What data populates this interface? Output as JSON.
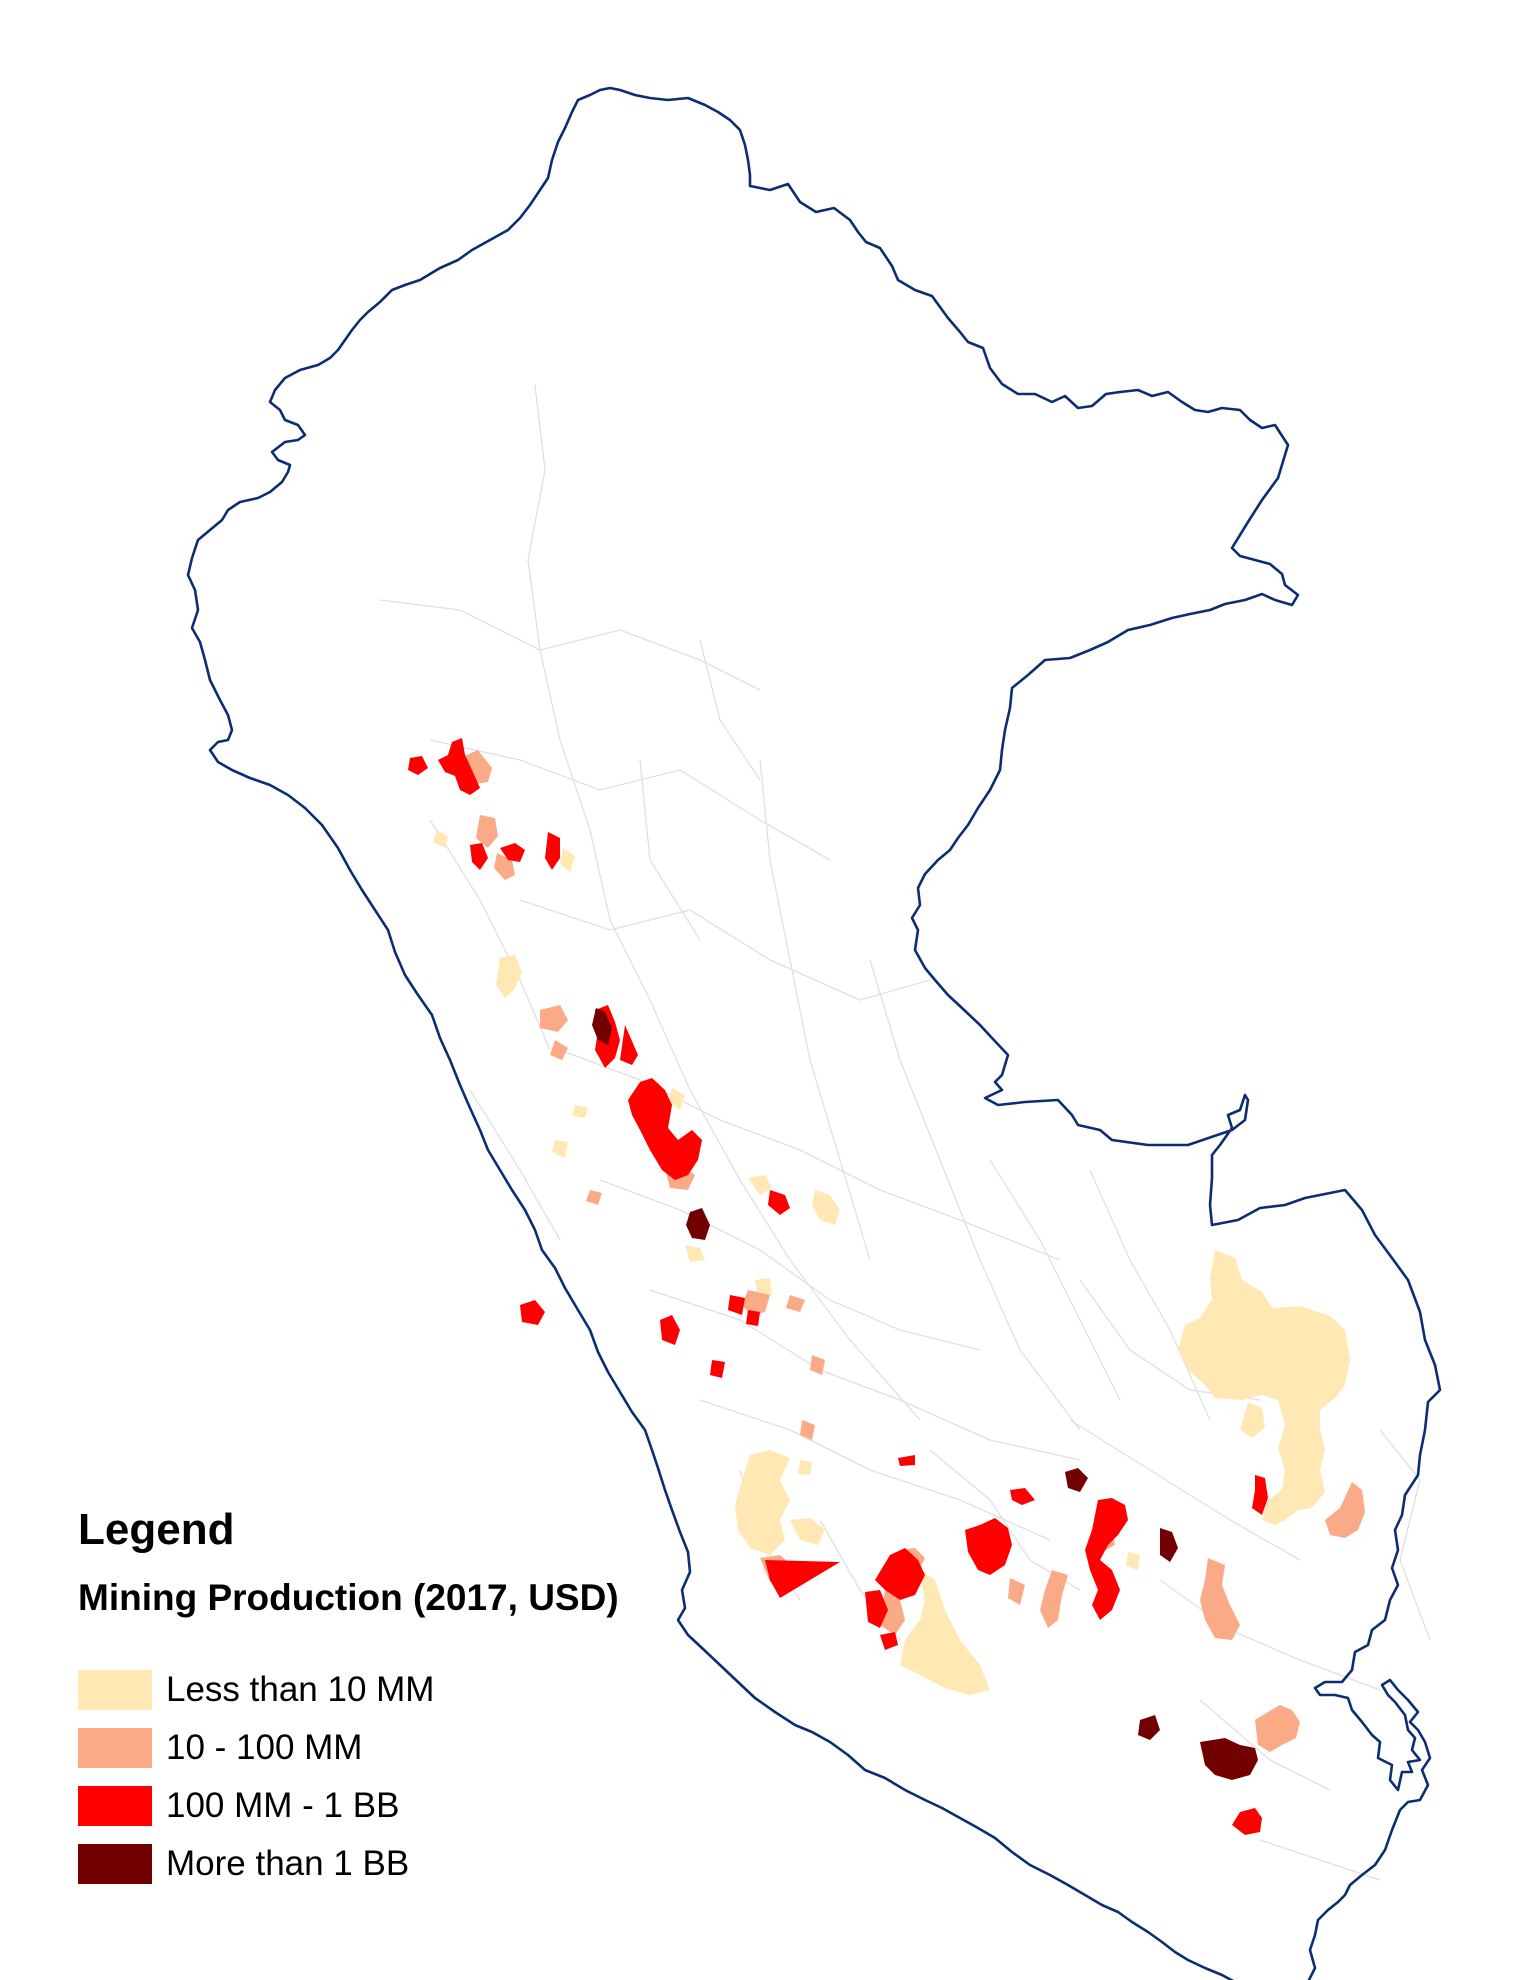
{
  "legend": {
    "title": "Legend",
    "subtitle": "Mining Production (2017, USD)",
    "items": [
      {
        "label": "Less than 10 MM",
        "color": "#FFE8B3"
      },
      {
        "label": "10 - 100 MM",
        "color": "#FBAA87"
      },
      {
        "label": "100 MM - 1 BB",
        "color": "#FF0000"
      },
      {
        "label": "More than 1 BB",
        "color": "#730000"
      }
    ]
  },
  "map": {
    "outline_color": "#0C2D72",
    "internal_border_color": "#E0E0E0"
  }
}
